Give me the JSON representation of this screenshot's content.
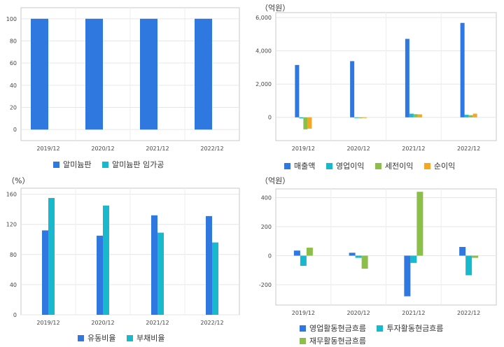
{
  "colors": {
    "blue": "#2e78e0",
    "teal": "#18b9cc",
    "green": "#8cbf4a",
    "orange": "#f5a623"
  },
  "chart_data": [
    {
      "type": "bar",
      "unit_label": "",
      "categories": [
        "2019/12",
        "2020/12",
        "2021/12",
        "2022/12"
      ],
      "series": [
        {
          "name": "알미늄판",
          "values": [
            100,
            100,
            100,
            100
          ],
          "color": "#2e78e0"
        },
        {
          "name": "알미늄판 임가공",
          "values": [
            0,
            0,
            0,
            0
          ],
          "color": "#18b9cc"
        }
      ],
      "yticks": [
        0,
        20,
        40,
        60,
        80,
        100
      ],
      "ylim": [
        -10,
        110
      ],
      "grid": true,
      "legend_position": "bottom"
    },
    {
      "type": "bar",
      "unit_label": "（억원）",
      "categories": [
        "2019/12",
        "2020/12",
        "2021/12",
        "2022/12"
      ],
      "series": [
        {
          "name": "매출액",
          "values": [
            3150,
            3380,
            4720,
            5680
          ],
          "color": "#2e78e0"
        },
        {
          "name": "영업이익",
          "values": [
            -60,
            -30,
            220,
            150
          ],
          "color": "#18b9cc"
        },
        {
          "name": "세전이익",
          "values": [
            -720,
            -50,
            190,
            130
          ],
          "color": "#8cbf4a"
        },
        {
          "name": "순이익",
          "values": [
            -680,
            -40,
            180,
            220
          ],
          "color": "#f5a623"
        }
      ],
      "yticks": [
        0,
        2000,
        4000,
        6000
      ],
      "ytick_labels": [
        "0",
        "2,000",
        "4,000",
        "6,000"
      ],
      "ylim": [
        -1400,
        6300
      ],
      "grid": true,
      "legend_position": "bottom"
    },
    {
      "type": "bar",
      "unit_label": "（%）",
      "categories": [
        "2019/12",
        "2020/12",
        "2021/12",
        "2022/12"
      ],
      "series": [
        {
          "name": "유동비율",
          "values": [
            112,
            105,
            132,
            131
          ],
          "color": "#2e78e0"
        },
        {
          "name": "부채비율",
          "values": [
            155,
            145,
            109,
            96
          ],
          "color": "#18b9cc"
        }
      ],
      "yticks": [
        0,
        40,
        80,
        120,
        160
      ],
      "ylim": [
        0,
        168
      ],
      "grid": true,
      "legend_position": "bottom"
    },
    {
      "type": "bar",
      "unit_label": "（억원）",
      "categories": [
        "2019/12",
        "2020/12",
        "2021/12",
        "2022/12"
      ],
      "series": [
        {
          "name": "영업활동현금흐름",
          "values": [
            35,
            20,
            -280,
            60
          ],
          "color": "#2e78e0"
        },
        {
          "name": "투자활동현금흐름",
          "values": [
            -70,
            -15,
            -50,
            -135
          ],
          "color": "#18b9cc"
        },
        {
          "name": "재무활동현금흐름",
          "values": [
            55,
            -90,
            440,
            -15
          ],
          "color": "#8cbf4a"
        }
      ],
      "yticks": [
        -200,
        0,
        200,
        400
      ],
      "ylim": [
        -340,
        460
      ],
      "grid": true,
      "legend_position": "bottom"
    }
  ]
}
